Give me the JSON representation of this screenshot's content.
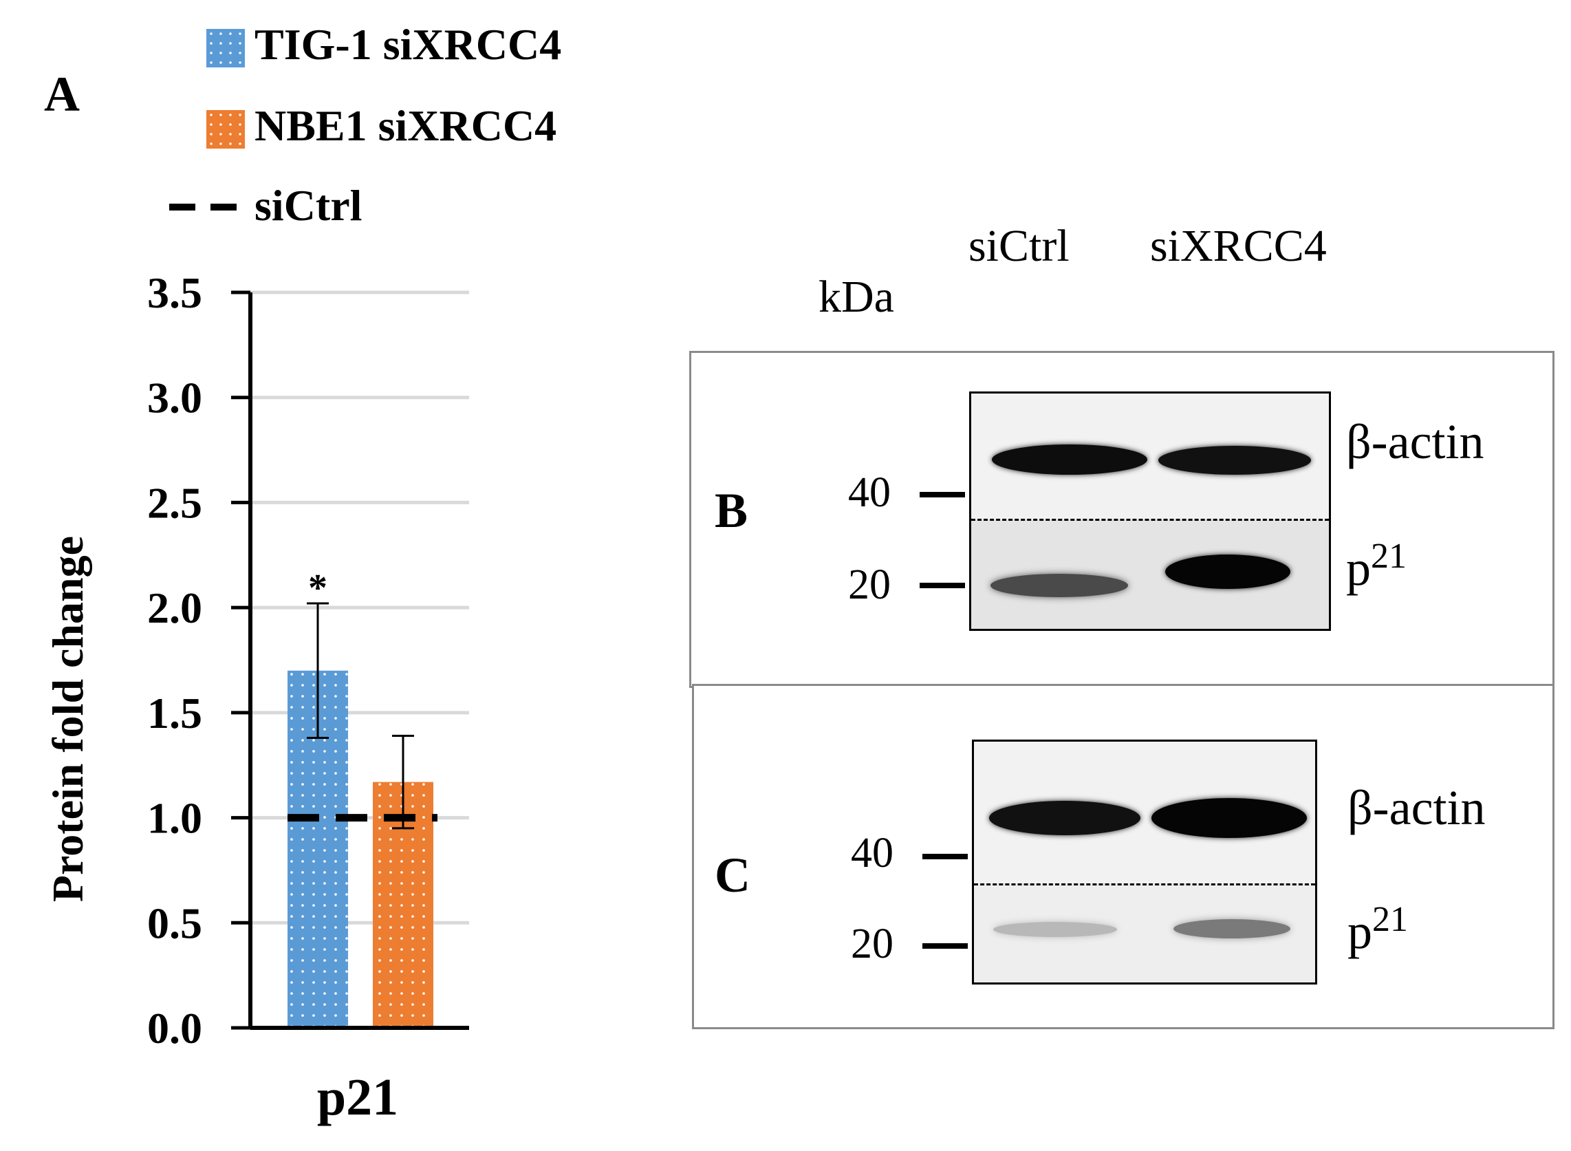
{
  "panels": {
    "a": "A",
    "b": "B",
    "c": "C"
  },
  "colors": {
    "tig": "#5b9bd5",
    "nbe": "#ed7d31",
    "grid": "#d9d9d9",
    "axis": "#000000"
  },
  "chart_data": {
    "type": "bar",
    "categories": [
      "p21"
    ],
    "series": [
      {
        "name": "TIG-1 siXRCC4",
        "values": [
          1.7
        ],
        "error": [
          0.32
        ],
        "annotation": "*"
      },
      {
        "name": "NBE1 siXRCC4",
        "values": [
          1.17
        ],
        "error": [
          0.22
        ],
        "annotation": ""
      }
    ],
    "reference_line": {
      "name": "siCtrl",
      "value": 1.0,
      "style": "dashed"
    },
    "ylabel": "Protein fold change",
    "xlabel": "",
    "ylim": [
      0,
      3.5
    ],
    "yticks": [
      "0.0",
      "0.5",
      "1.0",
      "1.5",
      "2.0",
      "2.5",
      "3.0",
      "3.5"
    ],
    "grid": true,
    "legend_position": "top"
  },
  "blot": {
    "kda_label": "kDa",
    "columns": [
      "siCtrl",
      "siXRCC4"
    ],
    "markers": [
      "40",
      "20"
    ],
    "proteins": {
      "actin": "β-actin",
      "p21_base": "p",
      "p21_sup": "21"
    }
  }
}
